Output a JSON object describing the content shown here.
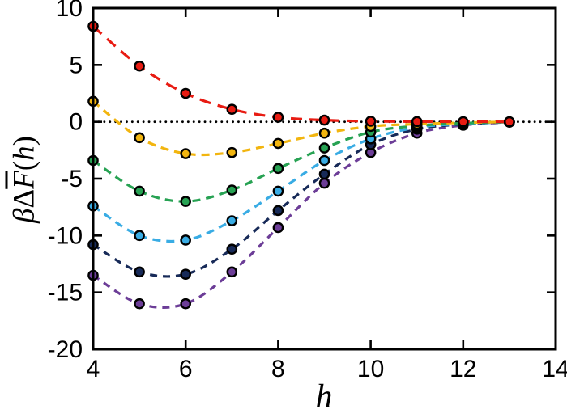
{
  "figure": {
    "background": "#ffffff",
    "frame_color": "#000000",
    "tick_label_color": "#000000"
  },
  "chart_data": {
    "type": "line",
    "title": "",
    "xlabel": "h",
    "ylabel": "βΔF̄(h)",
    "ylabel_parts": [
      {
        "text": "β",
        "style": "italic"
      },
      {
        "text": "Δ",
        "style": "upright"
      },
      {
        "text": "F",
        "style": "italic-overbar"
      },
      {
        "text": "(",
        "style": "upright"
      },
      {
        "text": "h",
        "style": "italic"
      },
      {
        "text": ")",
        "style": "upright"
      }
    ],
    "xlim": [
      4,
      14
    ],
    "ylim": [
      -20,
      10
    ],
    "xticks": [
      4,
      6,
      8,
      10,
      12,
      14
    ],
    "yticks": [
      -20,
      -15,
      -10,
      -5,
      0,
      5,
      10
    ],
    "grid": false,
    "legend": "none",
    "reference_line": {
      "y": 0,
      "style": "dotted",
      "color": "#000000"
    },
    "marker": {
      "shape": "circle",
      "edge_color": "#000000"
    },
    "x": [
      4,
      5,
      6,
      7,
      8,
      9,
      10,
      11,
      12,
      13
    ],
    "series": [
      {
        "name": "series-red",
        "color": "#e81b12",
        "line": "dashed",
        "dash": [
          14,
          9
        ],
        "values": [
          8.4,
          4.9,
          2.5,
          1.1,
          0.4,
          0.15,
          0.05,
          0.02,
          0.01,
          0.0
        ]
      },
      {
        "name": "series-gold",
        "color": "#f2b50f",
        "line": "dashed",
        "dash": [
          10,
          7
        ],
        "values": [
          1.8,
          -1.4,
          -2.8,
          -2.7,
          -1.9,
          -1.0,
          -0.4,
          -0.2,
          -0.08,
          0.0
        ]
      },
      {
        "name": "series-green",
        "color": "#27a253",
        "line": "dashed",
        "dash": [
          10,
          7
        ],
        "values": [
          -3.4,
          -6.1,
          -7.0,
          -6.0,
          -4.1,
          -2.3,
          -0.9,
          -0.35,
          -0.12,
          -0.01
        ]
      },
      {
        "name": "series-lightblue",
        "color": "#39ace4",
        "line": "dashed",
        "dash": [
          10,
          7
        ],
        "values": [
          -7.4,
          -10.0,
          -10.4,
          -8.7,
          -6.1,
          -3.4,
          -1.5,
          -0.5,
          -0.18,
          -0.02
        ]
      },
      {
        "name": "series-navy",
        "color": "#172a58",
        "line": "dashed",
        "dash": [
          9,
          7
        ],
        "values": [
          -10.8,
          -13.2,
          -13.4,
          -11.2,
          -7.8,
          -4.6,
          -2.0,
          -0.65,
          -0.22,
          -0.02
        ]
      },
      {
        "name": "series-purple",
        "color": "#6c3d97",
        "line": "dashed",
        "dash": [
          9,
          7
        ],
        "values": [
          -13.5,
          -16.0,
          -16.0,
          -13.2,
          -9.3,
          -5.4,
          -2.7,
          -1.0,
          -0.3,
          -0.03
        ]
      }
    ]
  }
}
